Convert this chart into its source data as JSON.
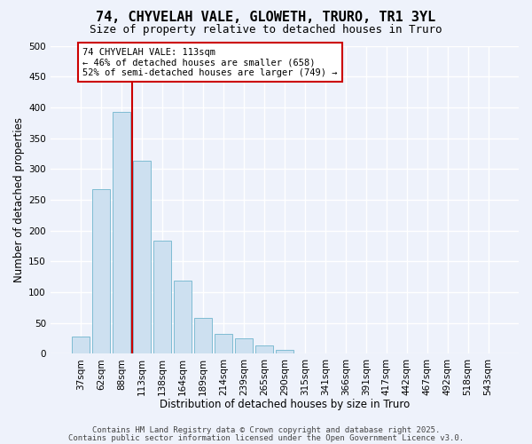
{
  "title": "74, CHYVELAH VALE, GLOWETH, TRURO, TR1 3YL",
  "subtitle": "Size of property relative to detached houses in Truro",
  "xlabel": "Distribution of detached houses by size in Truro",
  "ylabel": "Number of detached properties",
  "bar_labels": [
    "37sqm",
    "62sqm",
    "88sqm",
    "113sqm",
    "138sqm",
    "164sqm",
    "189sqm",
    "214sqm",
    "239sqm",
    "265sqm",
    "290sqm",
    "315sqm",
    "341sqm",
    "366sqm",
    "391sqm",
    "417sqm",
    "442sqm",
    "467sqm",
    "492sqm",
    "518sqm",
    "543sqm"
  ],
  "bar_values": [
    28,
    267,
    393,
    313,
    183,
    118,
    58,
    32,
    25,
    13,
    6,
    0,
    0,
    0,
    0,
    0,
    0,
    0,
    0,
    0,
    0
  ],
  "bar_color": "#cde0f0",
  "bar_edge_color": "#7fbcd2",
  "ylim": [
    0,
    500
  ],
  "yticks": [
    0,
    50,
    100,
    150,
    200,
    250,
    300,
    350,
    400,
    450,
    500
  ],
  "vline_color": "#cc0000",
  "annotation_title": "74 CHYVELAH VALE: 113sqm",
  "annotation_line1": "← 46% of detached houses are smaller (658)",
  "annotation_line2": "52% of semi-detached houses are larger (749) →",
  "annotation_box_color": "#ffffff",
  "annotation_box_edge": "#cc0000",
  "footer_line1": "Contains HM Land Registry data © Crown copyright and database right 2025.",
  "footer_line2": "Contains public sector information licensed under the Open Government Licence v3.0.",
  "background_color": "#eef2fb",
  "grid_color": "#ffffff",
  "title_fontsize": 11,
  "subtitle_fontsize": 9,
  "axis_label_fontsize": 8.5,
  "tick_fontsize": 7.5,
  "annotation_fontsize": 7.5,
  "footer_fontsize": 6.5
}
